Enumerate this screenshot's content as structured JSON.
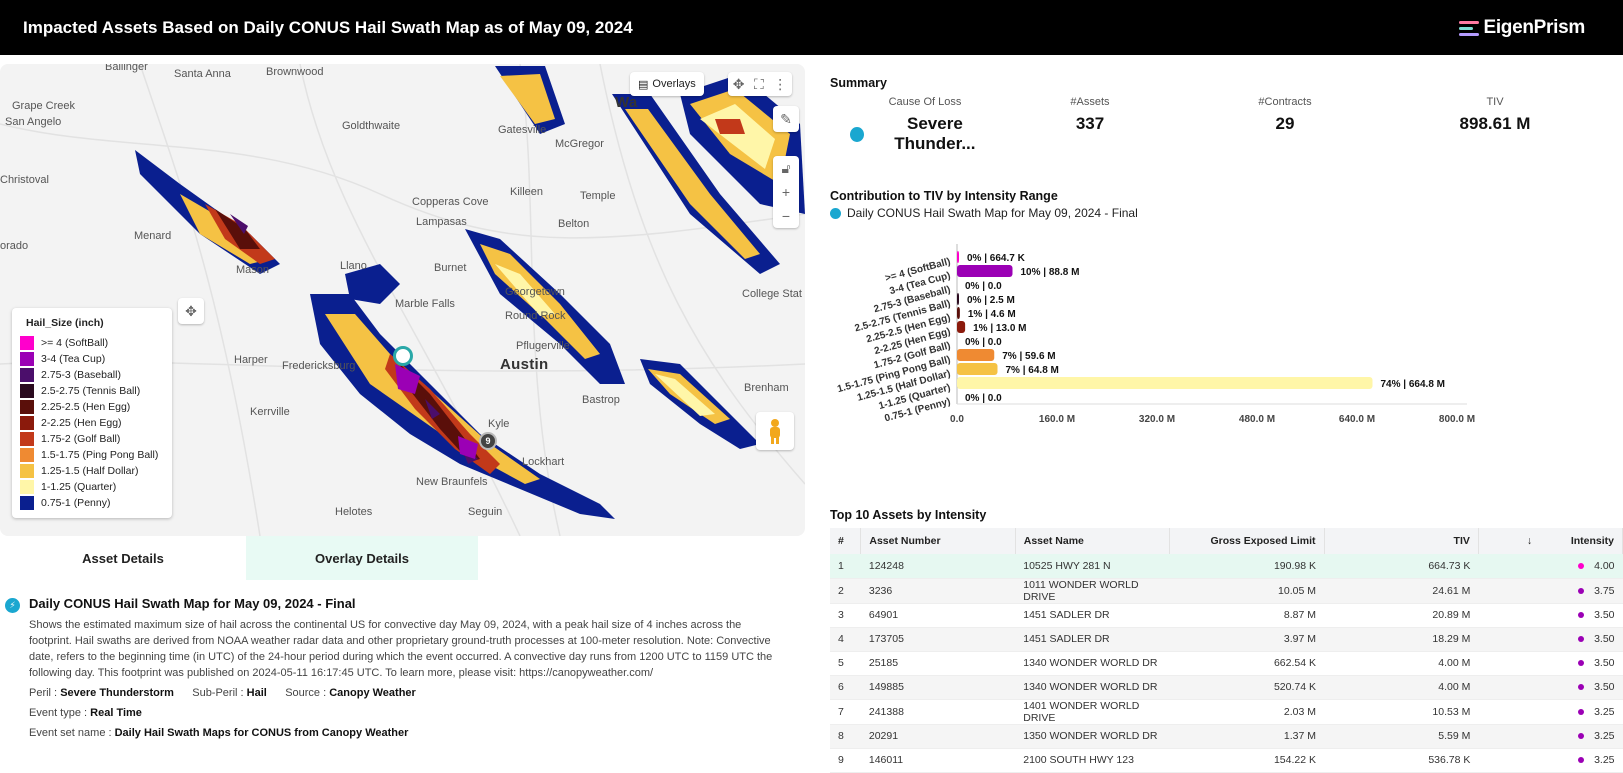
{
  "header": {
    "title": "Impacted Assets Based on Daily CONUS Hail Swath Map as of May 09, 2024",
    "logo_text": "EigenPrism"
  },
  "map": {
    "overlays_label": "Overlays",
    "places": [
      "Ballinger",
      "Santa Anna",
      "Brownwood",
      "Grape Creek",
      "San Angelo",
      "Goldthwaite",
      "Gatesville",
      "McGregor",
      "Christoval",
      "Killeen",
      "Temple",
      "Copperas Cove",
      "Belton",
      "Menard",
      "Lampasas",
      "orado",
      "Llano",
      "Burnet",
      "Georgetown",
      "Mason",
      "Marble Falls",
      "Round Rock",
      "College Stat",
      "Harper",
      "Fredericksburg",
      "Pflugerville",
      "Austin",
      "Kerrville",
      "Bastrop",
      "Brenham",
      "Kyle",
      "Lockhart",
      "New Braunfels",
      "Helotes",
      "Seguin",
      "Wa"
    ],
    "pin_label": "9",
    "legend": {
      "title": "Hail_Size (inch)",
      "items": [
        {
          "label": ">= 4 (SoftBall)",
          "color": "#ff00cc"
        },
        {
          "label": "3-4 (Tea Cup)",
          "color": "#9b00b5"
        },
        {
          "label": "2.75-3 (Baseball)",
          "color": "#4b0e6b"
        },
        {
          "label": "2.5-2.75 (Tennis Ball)",
          "color": "#2a0a1f"
        },
        {
          "label": "2.25-2.5 (Hen Egg)",
          "color": "#5a0f0a"
        },
        {
          "label": "2-2.25 (Hen Egg)",
          "color": "#8b1a0c"
        },
        {
          "label": "1.75-2 (Golf Ball)",
          "color": "#c2391a"
        },
        {
          "label": "1.5-1.75 (Ping Pong Ball)",
          "color": "#ef8a32"
        },
        {
          "label": "1.25-1.5 (Half Dollar)",
          "color": "#f5c244"
        },
        {
          "label": "1-1.25 (Quarter)",
          "color": "#fff6a8"
        },
        {
          "label": "0.75-1 (Penny)",
          "color": "#0a1f8f"
        }
      ]
    }
  },
  "tabs": {
    "asset_details": "Asset Details",
    "overlay_details": "Overlay Details"
  },
  "details": {
    "title": "Daily CONUS Hail Swath Map for May 09, 2024 - Final",
    "description": "Shows the estimated maximum size of hail across the continental US for convective day May 09, 2024, with a peak hail size of 4 inches across the footprint. Hail swaths are derived from NOAA weather radar data and other proprietary ground-truth processes at 100-meter resolution. Note: Convective date, refers to the beginning time (in UTC) of the 24-hour period during which the event occurred. A convective day runs from 1200 UTC to 1159 UTC the following day. This footprint was published on 2024-05-11 16:17:45 UTC. To learn more, please visit: https://canopyweather.com/",
    "peril_label": "Peril :",
    "peril": "Severe Thunderstorm",
    "subperil_label": "Sub-Peril :",
    "subperil": "Hail",
    "source_label": "Source :",
    "source": "Canopy Weather",
    "event_type_label": "Event type :",
    "event_type": "Real Time",
    "event_set_label": "Event set name :",
    "event_set": "Daily Hail Swath Maps for CONUS from Canopy Weather"
  },
  "summary": {
    "title": "Summary",
    "cause_label": "Cause Of Loss",
    "cause": "Severe Thunder...",
    "assets_label": "#Assets",
    "assets": "337",
    "contracts_label": "#Contracts",
    "contracts": "29",
    "tiv_label": "TIV",
    "tiv": "898.61 M"
  },
  "contribution": {
    "title": "Contribution to TIV by Intensity Range",
    "subtitle": "Daily CONUS Hail Swath Map for May 09, 2024 - Final"
  },
  "chart_data": {
    "type": "bar",
    "orientation": "horizontal",
    "categories": [
      ">= 4 (SoftBall)",
      "3-4 (Tea Cup)",
      "2.75-3 (Baseball)",
      "2.5-2.75 (Tennis Ball)",
      "2.25-2.5 (Hen Egg)",
      "2-2.25 (Hen Egg)",
      "1.75-2 (Golf Ball)",
      "1.5-1.75 (Ping Pong Ball)",
      "1.25-1.5 (Half Dollar)",
      "1-1.25 (Quarter)",
      "0.75-1 (Penny)"
    ],
    "values": [
      0.6647,
      88.8,
      0.0,
      2.5,
      4.6,
      13.0,
      0.0,
      59.6,
      64.8,
      664.8,
      0.0
    ],
    "data_labels": [
      "0% | 664.7 K",
      "10% | 88.8 M",
      "0% | 0.0",
      "0% | 2.5 M",
      "1% | 4.6 M",
      "1% | 13.0 M",
      "0% | 0.0",
      "7% | 59.6 M",
      "7% | 64.8 M",
      "74% | 664.8 M",
      "0% | 0.0"
    ],
    "colors": [
      "#ff00cc",
      "#9b00b5",
      "#4b0e6b",
      "#2a0a1f",
      "#5a0f0a",
      "#8b1a0c",
      "#c2391a",
      "#ef8a32",
      "#f5c244",
      "#fff6a8",
      "#0a1f8f"
    ],
    "xticks": [
      "0.0",
      "160.0 M",
      "320.0 M",
      "480.0 M",
      "640.0 M",
      "800.0 M"
    ],
    "xlim": [
      0,
      800
    ],
    "grid": false
  },
  "top10": {
    "title": "Top 10 Assets by Intensity",
    "columns": [
      "#",
      "Asset Number",
      "Asset Name",
      "Gross Exposed Limit",
      "TIV",
      "Intensity"
    ],
    "rows": [
      [
        "1",
        "124248",
        "10525 HWY 281 N",
        "190.98 K",
        "664.73 K",
        "4.00"
      ],
      [
        "2",
        "3236",
        "1011 WONDER WORLD DRIVE",
        "10.05 M",
        "24.61 M",
        "3.75"
      ],
      [
        "3",
        "64901",
        "1451 SADLER DR",
        "8.87 M",
        "20.89 M",
        "3.50"
      ],
      [
        "4",
        "173705",
        "1451 SADLER DR",
        "3.97 M",
        "18.29 M",
        "3.50"
      ],
      [
        "5",
        "25185",
        "1340 WONDER WORLD DR",
        "662.54 K",
        "4.00 M",
        "3.50"
      ],
      [
        "6",
        "149885",
        "1340 WONDER WORLD DR",
        "520.74 K",
        "4.00 M",
        "3.50"
      ],
      [
        "7",
        "241388",
        "1401 WONDER WORLD DRIVE",
        "2.03 M",
        "10.53 M",
        "3.25"
      ],
      [
        "8",
        "20291",
        "1350 WONDER WORLD DR",
        "1.37 M",
        "5.59 M",
        "3.25"
      ],
      [
        "9",
        "146011",
        "2100 SOUTH HWY 123",
        "154.22 K",
        "536.78 K",
        "3.25"
      ]
    ],
    "intensity_colors": [
      "#ff00cc",
      "#9b00b5",
      "#9b00b5",
      "#9b00b5",
      "#9b00b5",
      "#9b00b5",
      "#9b00b5",
      "#9b00b5",
      "#9b00b5"
    ]
  }
}
